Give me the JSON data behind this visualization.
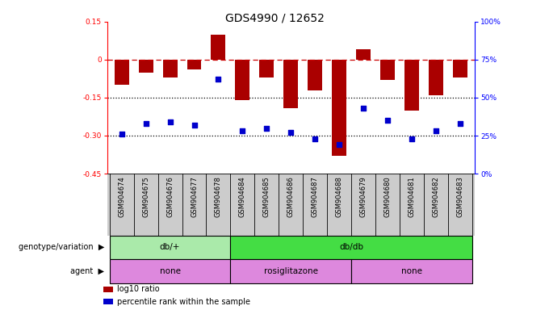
{
  "title": "GDS4990 / 12652",
  "samples": [
    "GSM904674",
    "GSM904675",
    "GSM904676",
    "GSM904677",
    "GSM904678",
    "GSM904684",
    "GSM904685",
    "GSM904686",
    "GSM904687",
    "GSM904688",
    "GSM904679",
    "GSM904680",
    "GSM904681",
    "GSM904682",
    "GSM904683"
  ],
  "log10_ratio": [
    -0.1,
    -0.05,
    -0.07,
    -0.04,
    0.1,
    -0.16,
    -0.07,
    -0.19,
    -0.12,
    -0.38,
    0.04,
    -0.08,
    -0.2,
    -0.14,
    -0.07
  ],
  "percentile_rank": [
    26,
    33,
    34,
    32,
    62,
    28,
    30,
    27,
    23,
    19,
    43,
    35,
    23,
    28,
    33
  ],
  "bar_color": "#aa0000",
  "dot_color": "#0000cc",
  "dashed_line_color": "#cc0000",
  "dotted_line_color": "#000000",
  "ylim_left": [
    -0.45,
    0.15
  ],
  "ylim_right": [
    0,
    100
  ],
  "yticks_left": [
    0.15,
    0.0,
    -0.15,
    -0.3,
    -0.45
  ],
  "yticks_right": [
    100,
    75,
    50,
    25,
    0
  ],
  "genotype_groups": [
    {
      "label": "db/+",
      "start": 0,
      "end": 5,
      "color": "#aaeaaa"
    },
    {
      "label": "db/db",
      "start": 5,
      "end": 15,
      "color": "#44dd44"
    }
  ],
  "agent_groups": [
    {
      "label": "none",
      "start": 0,
      "end": 5,
      "color": "#dd88dd"
    },
    {
      "label": "rosiglitazone",
      "start": 5,
      "end": 10,
      "color": "#dd88dd"
    },
    {
      "label": "none",
      "start": 10,
      "end": 15,
      "color": "#dd88dd"
    }
  ],
  "legend_items": [
    {
      "color": "#aa0000",
      "label": "log10 ratio"
    },
    {
      "color": "#0000cc",
      "label": "percentile rank within the sample"
    }
  ],
  "background_color": "#ffffff",
  "title_fontsize": 10,
  "tick_fontsize": 6.5,
  "sample_fontsize": 6,
  "label_fontsize": 7.5
}
